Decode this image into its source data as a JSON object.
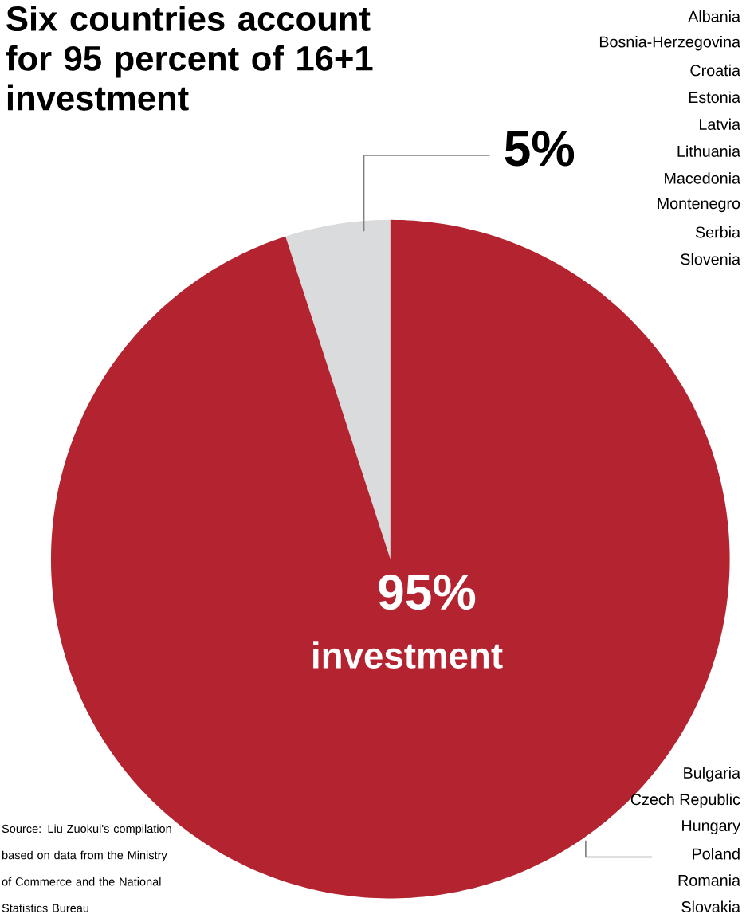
{
  "chart_data": {
    "type": "pie",
    "title": "Six countries account for 95 percent of 16+1 investment",
    "categories": [
      null,
      "investment"
    ],
    "values": [
      5,
      95
    ],
    "colors": [
      "#d9dbdc",
      "#b32430"
    ],
    "value_labels": [
      "5%",
      "95%"
    ],
    "annotations": [
      "Source: Liu Zuokui's compilation based on data from the Ministry of Commerce and the National Statistics Bureau",
      "Albania",
      "Bosnia-Herzegovina",
      "Croatia",
      "Estonia",
      "Latvia",
      "Lithuania",
      "Macedonia",
      "Montenegro",
      "Serbia",
      "Slovenia",
      "Bulgaria",
      "Czech Republic",
      "Hungary",
      "Poland",
      "Romania",
      "Slovakia"
    ]
  }
}
